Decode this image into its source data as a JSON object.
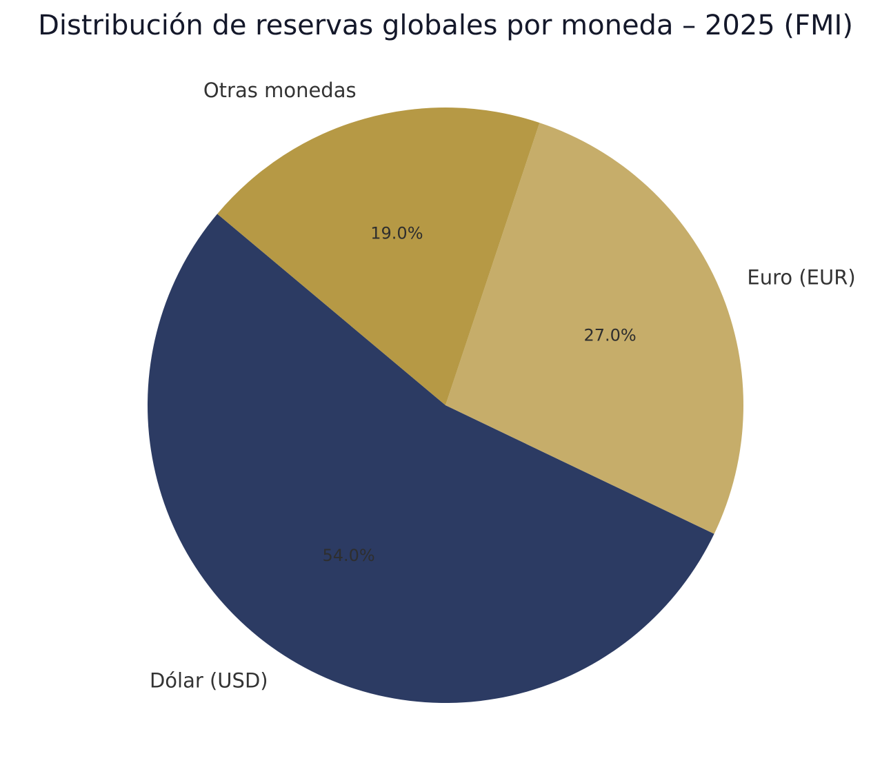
{
  "chart_data": {
    "type": "pie",
    "title": "Distribución de reservas globales por moneda – 2025 (FMI)",
    "slices": [
      {
        "label": "Dólar (USD)",
        "value": 54.0,
        "pct_label": "54.0%",
        "color": "#2c3b63"
      },
      {
        "label": "Euro (EUR)",
        "value": 27.0,
        "pct_label": "27.0%",
        "color": "#c6ad6a"
      },
      {
        "label": "Otras monedas",
        "value": 19.0,
        "pct_label": "19.0%",
        "color": "#b69945"
      }
    ],
    "start_angle_deg": 140,
    "direction": "counterclockwise",
    "legend": "none"
  }
}
